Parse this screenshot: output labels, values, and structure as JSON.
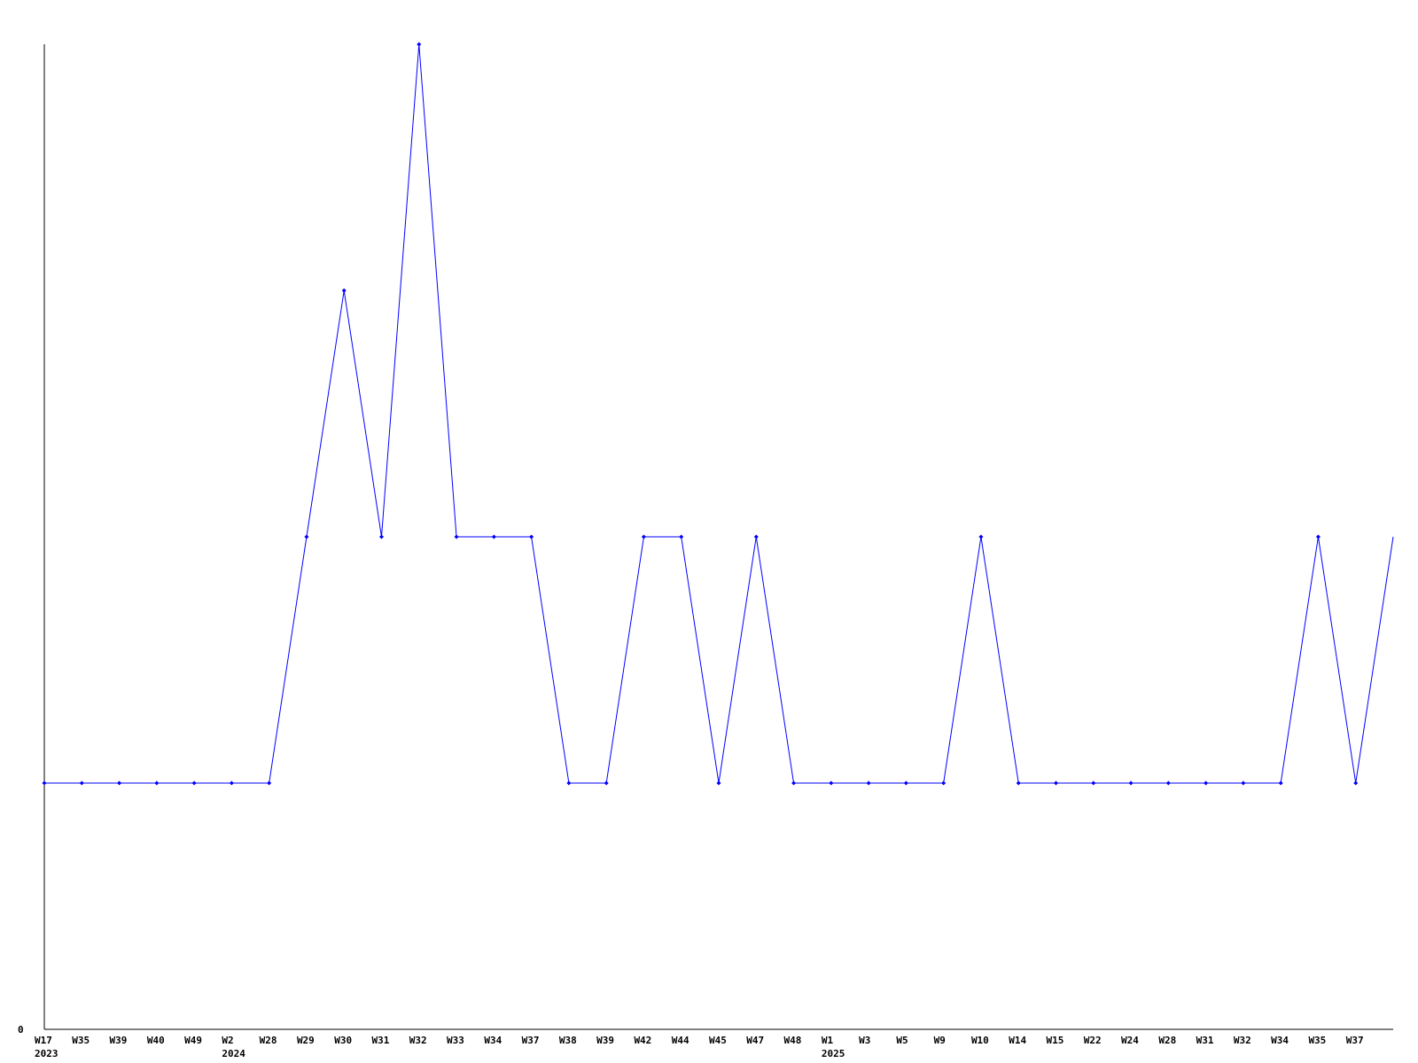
{
  "chart_data": {
    "type": "line",
    "title": "",
    "xlabel": "",
    "ylabel": "",
    "ylim": [
      0,
      4
    ],
    "y_tick_labels": [
      "0"
    ],
    "grid": false,
    "legend": "none",
    "line_color": "#0000ff",
    "axis_color": "#000000",
    "categories": [
      "W17",
      "W35",
      "W39",
      "W40",
      "W49",
      "W2",
      "W28",
      "W29",
      "W30",
      "W31",
      "W32",
      "W33",
      "W34",
      "W37",
      "W38",
      "W39",
      "W42",
      "W44",
      "W45",
      "W47",
      "W48",
      "W1",
      "W3",
      "W5",
      "W9",
      "W10",
      "W14",
      "W15",
      "W22",
      "W24",
      "W28",
      "W31",
      "W32",
      "W34",
      "W35",
      "W37",
      ""
    ],
    "year_labels": [
      {
        "at": 0,
        "label": "2023"
      },
      {
        "at": 5,
        "label": "2024"
      },
      {
        "at": 21,
        "label": "2025"
      }
    ],
    "values": [
      1,
      1,
      1,
      1,
      1,
      1,
      1,
      2,
      3,
      2,
      4,
      2,
      2,
      2,
      1,
      1,
      2,
      2,
      1,
      2,
      1,
      1,
      1,
      1,
      1,
      2,
      1,
      1,
      1,
      1,
      1,
      1,
      1,
      1,
      2,
      1,
      2
    ]
  }
}
